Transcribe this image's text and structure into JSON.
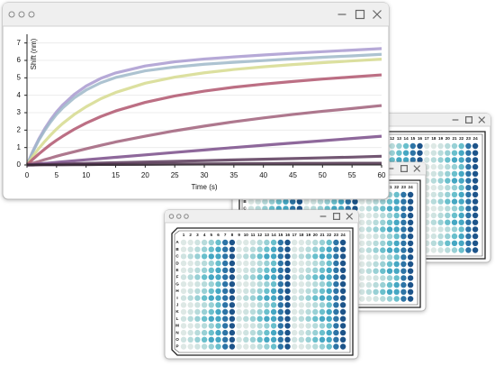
{
  "chart_data": {
    "type": "line",
    "xlabel": "Time (s)",
    "ylabel": "Shift (nm)",
    "x": [
      0,
      1,
      2,
      3,
      4,
      5,
      6,
      8,
      10,
      12.5,
      15,
      20,
      25,
      30,
      35,
      40,
      45,
      50,
      55,
      60
    ],
    "series": [
      {
        "color": "#a99ad0",
        "values": [
          0,
          0.8,
          1.49,
          2.08,
          2.6,
          3.05,
          3.43,
          4.05,
          4.53,
          4.97,
          5.28,
          5.68,
          5.92,
          6.08,
          6.2,
          6.31,
          6.41,
          6.5,
          6.59,
          6.68
        ]
      },
      {
        "color": "#9fb9c9",
        "values": [
          0,
          0.76,
          1.42,
          1.98,
          2.47,
          2.9,
          3.26,
          3.85,
          4.3,
          4.72,
          5.02,
          5.4,
          5.62,
          5.78,
          5.89,
          5.99,
          6.09,
          6.18,
          6.26,
          6.35
        ]
      },
      {
        "color": "#d6da8e",
        "values": [
          0,
          0.5,
          0.95,
          1.35,
          1.72,
          2.06,
          2.37,
          2.9,
          3.34,
          3.8,
          4.16,
          4.69,
          5.04,
          5.29,
          5.48,
          5.63,
          5.76,
          5.87,
          5.97,
          6.07
        ]
      },
      {
        "color": "#b0566e",
        "values": [
          0,
          0.33,
          0.63,
          0.91,
          1.18,
          1.42,
          1.64,
          2.05,
          2.4,
          2.78,
          3.1,
          3.59,
          3.96,
          4.24,
          4.46,
          4.64,
          4.79,
          4.93,
          5.05,
          5.17
        ]
      },
      {
        "color": "#a0607a",
        "values": [
          0,
          0.11,
          0.2,
          0.31,
          0.4,
          0.5,
          0.59,
          0.76,
          0.93,
          1.13,
          1.32,
          1.65,
          1.96,
          2.23,
          2.48,
          2.7,
          2.9,
          3.08,
          3.24,
          3.41
        ]
      },
      {
        "color": "#7a4e8a",
        "values": [
          0,
          0.03,
          0.06,
          0.09,
          0.12,
          0.15,
          0.18,
          0.24,
          0.3,
          0.37,
          0.44,
          0.58,
          0.72,
          0.86,
          1.0,
          1.13,
          1.26,
          1.39,
          1.52,
          1.65
        ]
      },
      {
        "color": "#5a3a5a",
        "values": [
          0,
          0.01,
          0.02,
          0.03,
          0.03,
          0.04,
          0.05,
          0.07,
          0.09,
          0.11,
          0.13,
          0.17,
          0.21,
          0.25,
          0.29,
          0.33,
          0.37,
          0.41,
          0.45,
          0.5
        ]
      },
      {
        "color": "#4a2e48",
        "values": [
          0,
          0,
          0.01,
          0.01,
          0.01,
          0.01,
          0.01,
          0.02,
          0.02,
          0.03,
          0.03,
          0.04,
          0.05,
          0.06,
          0.07,
          0.08,
          0.09,
          0.09,
          0.1,
          0.1
        ]
      }
    ],
    "xlim": [
      0,
      60
    ],
    "ylim": [
      0,
      7.5
    ],
    "xticks": [
      0,
      5,
      10,
      15,
      20,
      25,
      30,
      35,
      40,
      45,
      50,
      55,
      60
    ],
    "yticks": [
      0,
      1,
      2,
      3,
      4,
      5,
      6,
      7
    ],
    "grid": true
  },
  "plate": {
    "rows": [
      "A",
      "B",
      "C",
      "D",
      "E",
      "F",
      "G",
      "H",
      "I",
      "J",
      "K",
      "L",
      "M",
      "N",
      "O",
      "P"
    ],
    "columns": [
      1,
      2,
      3,
      4,
      5,
      6,
      7,
      8,
      9,
      10,
      11,
      12,
      13,
      14,
      15,
      16,
      17,
      18,
      19,
      20,
      21,
      22,
      23,
      24
    ]
  }
}
